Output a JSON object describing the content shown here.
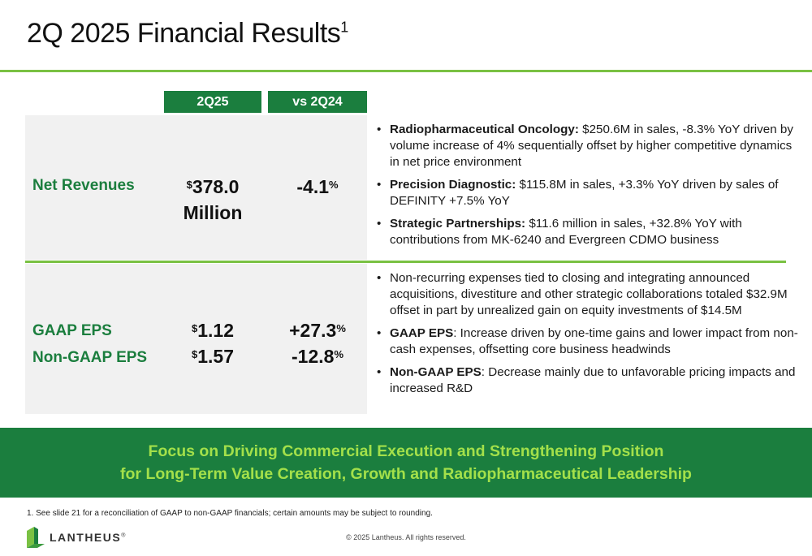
{
  "title": {
    "main": "2Q 2025 Financial Results",
    "footnote_mark": "1"
  },
  "columns": {
    "period": "2Q25",
    "comparison": "vs 2Q24"
  },
  "net_revenues": {
    "label": "Net Revenues",
    "currency": "$",
    "value": "378.0",
    "unit": "Million",
    "change": "-4.1",
    "pct": "%"
  },
  "eps": {
    "gaap_label": "GAAP EPS",
    "gaap_currency": "$",
    "gaap_value": "1.12",
    "gaap_change": "+27.3",
    "gaap_pct": "%",
    "nongaap_label": "Non-GAAP EPS",
    "nongaap_currency": "$",
    "nongaap_value": "1.57",
    "nongaap_change": "-12.8",
    "nongaap_pct": "%"
  },
  "revenue_bullets": [
    {
      "bold": "Radiopharmaceutical Oncology:",
      "text": " $250.6M in sales, -8.3% YoY driven by volume increase of 4% sequentially offset by higher competitive dynamics in net price environment"
    },
    {
      "bold": "Precision Diagnostic:",
      "text": " $115.8M in sales, +3.3% YoY driven by sales of DEFINITY +7.5% YoY"
    },
    {
      "bold": "Strategic Partnerships:",
      "text": " $11.6 million in sales, +32.8% YoY with contributions from MK-6240 and Evergreen CDMO business"
    }
  ],
  "eps_bullets": [
    {
      "bold": "",
      "text": "Non-recurring expenses tied to closing and integrating announced acquisitions, divestiture and other strategic collaborations totaled $32.9M offset in part by unrealized gain on equity investments of $14.5M"
    },
    {
      "bold": "GAAP EPS",
      "text": ": Increase driven by one-time gains and lower impact from non-cash expenses, offsetting core business headwinds"
    },
    {
      "bold": "Non-GAAP EPS",
      "text": ": Decrease mainly due to unfavorable pricing impacts and increased R&D"
    }
  ],
  "banner": {
    "line1": "Focus on Driving Commercial Execution and Strengthening Position",
    "line2": "for Long-Term Value Creation, Growth and Radiopharmaceutical Leadership"
  },
  "footer": {
    "footnote": "1. See slide 21 for a reconciliation of GAAP to non-GAAP financials; certain amounts may be subject to rounding.",
    "logo_text": "LANTHEUS",
    "logo_mark": "®",
    "copyright": "© 2025 Lantheus. All rights reserved."
  },
  "colors": {
    "brand_green": "#1b7e3e",
    "accent_lime": "#7ac143",
    "banner_text": "#a3e04a"
  }
}
